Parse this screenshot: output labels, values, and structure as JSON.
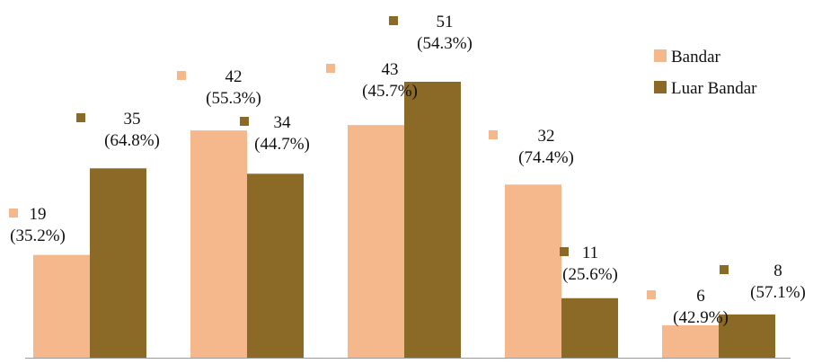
{
  "colors": {
    "bandar": "#F5B88D",
    "luar_bandar": "#8B6A28",
    "axis": "#9a9a9a",
    "text": "#111111"
  },
  "chart_data": {
    "type": "bar",
    "categories": [
      "",
      "",
      "",
      "",
      ""
    ],
    "series": [
      {
        "name": "Bandar",
        "values": [
          19,
          42,
          43,
          32,
          6
        ],
        "labels": [
          "19",
          "42",
          "43",
          "32",
          "6"
        ],
        "percent_labels": [
          "(35.2%)",
          "(55.3%)",
          "(45.7%)",
          "(74.4%)",
          "(42.9%)"
        ]
      },
      {
        "name": "Luar Bandar",
        "values": [
          35,
          34,
          51,
          11,
          8
        ],
        "labels": [
          "35",
          "34",
          "51",
          "11",
          "8"
        ],
        "percent_labels": [
          "(64.8%)",
          "(44.7%)",
          "(54.3%)",
          "(25.6%)",
          "(57.1%)"
        ]
      }
    ],
    "ylim": [
      0,
      55
    ],
    "grid": false,
    "legend_position": "top-right",
    "title": "",
    "xlabel": "",
    "ylabel": ""
  }
}
